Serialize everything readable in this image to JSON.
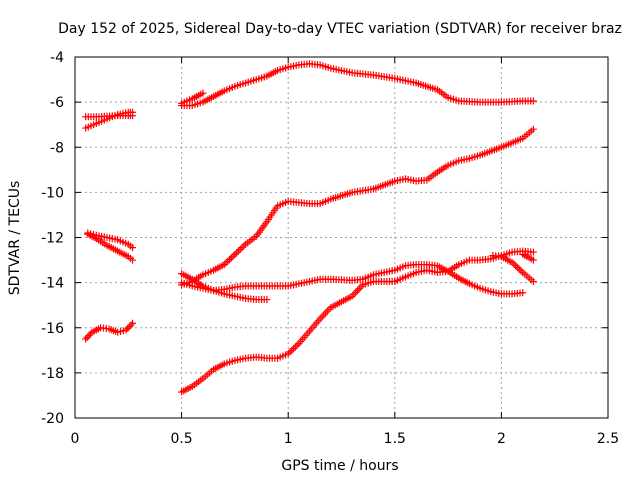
{
  "chart_data": {
    "type": "scatter",
    "title": "Day 152 of 2025, Sidereal Day-to-day VTEC variation (SDTVAR) for receiver braz",
    "xlabel": "GPS time / hours",
    "ylabel": "SDTVAR / TECUs",
    "xlim": [
      0,
      2.5
    ],
    "ylim": [
      -20,
      -4
    ],
    "xticks": [
      0,
      0.5,
      1,
      1.5,
      2,
      2.5
    ],
    "xtick_labels": [
      "0",
      "0.5",
      "1",
      "1.5",
      "2",
      "2.5"
    ],
    "yticks": [
      -20,
      -18,
      -16,
      -14,
      -12,
      -10,
      -8,
      -6,
      -4
    ],
    "ytick_labels": [
      "-20",
      "-18",
      "-16",
      "-14",
      "-12",
      "-10",
      "-8",
      "-6",
      "-4"
    ],
    "grid": true,
    "marker": "plus",
    "color": "#ff0000",
    "series": [
      {
        "name": "trace-1",
        "points": [
          [
            0.05,
            -6.65
          ],
          [
            0.1,
            -6.65
          ],
          [
            0.15,
            -6.62
          ],
          [
            0.2,
            -6.6
          ],
          [
            0.25,
            -6.6
          ],
          [
            0.27,
            -6.6
          ]
        ]
      },
      {
        "name": "trace-2",
        "points": [
          [
            0.05,
            -7.15
          ],
          [
            0.1,
            -6.95
          ],
          [
            0.15,
            -6.75
          ],
          [
            0.2,
            -6.55
          ],
          [
            0.25,
            -6.45
          ],
          [
            0.27,
            -6.45
          ]
        ]
      },
      {
        "name": "trace-3",
        "points": [
          [
            0.06,
            -11.8
          ],
          [
            0.1,
            -11.9
          ],
          [
            0.15,
            -12.0
          ],
          [
            0.2,
            -12.1
          ],
          [
            0.25,
            -12.3
          ],
          [
            0.27,
            -12.45
          ]
        ]
      },
      {
        "name": "trace-4",
        "points": [
          [
            0.06,
            -11.85
          ],
          [
            0.1,
            -12.05
          ],
          [
            0.15,
            -12.35
          ],
          [
            0.2,
            -12.6
          ],
          [
            0.25,
            -12.85
          ],
          [
            0.27,
            -13.0
          ]
        ]
      },
      {
        "name": "trace-5",
        "points": [
          [
            0.05,
            -16.5
          ],
          [
            0.08,
            -16.2
          ],
          [
            0.12,
            -16.0
          ],
          [
            0.16,
            -16.05
          ],
          [
            0.2,
            -16.2
          ],
          [
            0.24,
            -16.1
          ],
          [
            0.27,
            -15.8
          ]
        ]
      },
      {
        "name": "trace-6",
        "points": [
          [
            0.5,
            -6.05
          ],
          [
            0.55,
            -5.85
          ],
          [
            0.6,
            -5.6
          ]
        ]
      },
      {
        "name": "trace-7",
        "points": [
          [
            0.5,
            -6.15
          ],
          [
            0.55,
            -6.15
          ],
          [
            0.6,
            -6.0
          ],
          [
            0.65,
            -5.75
          ],
          [
            0.7,
            -5.5
          ],
          [
            0.75,
            -5.3
          ],
          [
            0.8,
            -5.15
          ],
          [
            0.85,
            -5.0
          ],
          [
            0.9,
            -4.85
          ],
          [
            0.95,
            -4.6
          ],
          [
            1.0,
            -4.45
          ],
          [
            1.05,
            -4.35
          ],
          [
            1.1,
            -4.3
          ],
          [
            1.15,
            -4.35
          ],
          [
            1.2,
            -4.5
          ],
          [
            1.3,
            -4.7
          ],
          [
            1.4,
            -4.8
          ],
          [
            1.5,
            -4.95
          ],
          [
            1.6,
            -5.15
          ],
          [
            1.7,
            -5.45
          ],
          [
            1.75,
            -5.8
          ],
          [
            1.8,
            -5.95
          ],
          [
            1.9,
            -6.0
          ],
          [
            2.0,
            -6.0
          ],
          [
            2.1,
            -5.95
          ],
          [
            2.15,
            -5.95
          ]
        ]
      },
      {
        "name": "trace-8",
        "points": [
          [
            0.5,
            -14.1
          ],
          [
            0.55,
            -13.95
          ],
          [
            0.6,
            -13.65
          ],
          [
            0.65,
            -13.45
          ],
          [
            0.7,
            -13.2
          ],
          [
            0.75,
            -12.75
          ],
          [
            0.8,
            -12.3
          ],
          [
            0.85,
            -11.95
          ],
          [
            0.9,
            -11.3
          ],
          [
            0.95,
            -10.6
          ],
          [
            1.0,
            -10.4
          ],
          [
            1.05,
            -10.45
          ],
          [
            1.1,
            -10.5
          ],
          [
            1.15,
            -10.5
          ],
          [
            1.2,
            -10.3
          ],
          [
            1.3,
            -10.0
          ],
          [
            1.4,
            -9.85
          ],
          [
            1.5,
            -9.5
          ],
          [
            1.55,
            -9.4
          ],
          [
            1.6,
            -9.5
          ],
          [
            1.65,
            -9.45
          ],
          [
            1.7,
            -9.1
          ],
          [
            1.75,
            -8.8
          ],
          [
            1.8,
            -8.6
          ],
          [
            1.85,
            -8.5
          ],
          [
            1.9,
            -8.35
          ],
          [
            2.0,
            -8.0
          ],
          [
            2.1,
            -7.6
          ],
          [
            2.15,
            -7.2
          ]
        ]
      },
      {
        "name": "trace-9",
        "points": [
          [
            0.5,
            -13.6
          ],
          [
            0.55,
            -13.85
          ],
          [
            0.6,
            -14.15
          ],
          [
            0.65,
            -14.35
          ],
          [
            0.7,
            -14.5
          ],
          [
            0.75,
            -14.6
          ],
          [
            0.8,
            -14.7
          ],
          [
            0.85,
            -14.75
          ],
          [
            0.9,
            -14.75
          ]
        ]
      },
      {
        "name": "trace-10",
        "points": [
          [
            0.5,
            -14.0
          ],
          [
            0.55,
            -14.15
          ],
          [
            0.6,
            -14.25
          ],
          [
            0.65,
            -14.35
          ],
          [
            0.7,
            -14.3
          ],
          [
            0.75,
            -14.2
          ],
          [
            0.8,
            -14.15
          ],
          [
            0.9,
            -14.15
          ],
          [
            1.0,
            -14.15
          ],
          [
            1.1,
            -13.95
          ],
          [
            1.15,
            -13.85
          ],
          [
            1.2,
            -13.85
          ],
          [
            1.3,
            -13.9
          ],
          [
            1.35,
            -13.85
          ],
          [
            1.4,
            -13.65
          ],
          [
            1.5,
            -13.45
          ],
          [
            1.55,
            -13.25
          ],
          [
            1.6,
            -13.2
          ],
          [
            1.65,
            -13.2
          ],
          [
            1.7,
            -13.25
          ],
          [
            1.75,
            -13.5
          ],
          [
            1.8,
            -13.8
          ],
          [
            1.85,
            -14.05
          ],
          [
            1.9,
            -14.25
          ],
          [
            1.95,
            -14.4
          ],
          [
            2.0,
            -14.5
          ],
          [
            2.05,
            -14.5
          ],
          [
            2.1,
            -14.45
          ]
        ]
      },
      {
        "name": "trace-11",
        "points": [
          [
            0.5,
            -18.85
          ],
          [
            0.55,
            -18.6
          ],
          [
            0.6,
            -18.25
          ],
          [
            0.65,
            -17.85
          ],
          [
            0.7,
            -17.6
          ],
          [
            0.75,
            -17.45
          ],
          [
            0.8,
            -17.35
          ],
          [
            0.85,
            -17.3
          ],
          [
            0.9,
            -17.35
          ],
          [
            0.95,
            -17.35
          ],
          [
            1.0,
            -17.15
          ],
          [
            1.05,
            -16.7
          ],
          [
            1.1,
            -16.15
          ],
          [
            1.15,
            -15.6
          ],
          [
            1.2,
            -15.1
          ],
          [
            1.25,
            -14.85
          ],
          [
            1.3,
            -14.6
          ],
          [
            1.35,
            -14.1
          ],
          [
            1.4,
            -13.95
          ],
          [
            1.5,
            -13.95
          ],
          [
            1.55,
            -13.75
          ],
          [
            1.6,
            -13.55
          ],
          [
            1.65,
            -13.45
          ],
          [
            1.7,
            -13.55
          ],
          [
            1.75,
            -13.5
          ],
          [
            1.8,
            -13.2
          ],
          [
            1.85,
            -13.0
          ],
          [
            1.9,
            -13.0
          ],
          [
            1.95,
            -12.95
          ],
          [
            2.0,
            -12.8
          ],
          [
            2.05,
            -12.65
          ],
          [
            2.1,
            -12.6
          ],
          [
            2.15,
            -12.65
          ]
        ]
      },
      {
        "name": "trace-12",
        "points": [
          [
            1.96,
            -12.8
          ],
          [
            2.0,
            -12.85
          ],
          [
            2.05,
            -13.1
          ],
          [
            2.1,
            -13.55
          ],
          [
            2.15,
            -13.95
          ]
        ]
      },
      {
        "name": "trace-13",
        "points": [
          [
            2.1,
            -12.75
          ],
          [
            2.13,
            -12.9
          ],
          [
            2.15,
            -13.0
          ]
        ]
      }
    ]
  }
}
